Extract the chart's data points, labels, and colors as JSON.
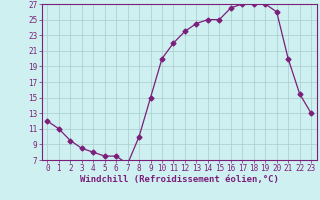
{
  "x": [
    0,
    1,
    2,
    3,
    4,
    5,
    6,
    7,
    8,
    9,
    10,
    11,
    12,
    13,
    14,
    15,
    16,
    17,
    18,
    19,
    20,
    21,
    22,
    23
  ],
  "y": [
    12,
    11,
    9.5,
    8.5,
    8,
    7.5,
    7.5,
    6.5,
    10,
    15,
    20,
    22,
    23.5,
    24.5,
    25,
    25,
    26.5,
    27,
    27,
    27,
    26,
    20,
    15.5,
    13
  ],
  "line_color": "#7B1F7B",
  "marker": "D",
  "marker_size": 2.5,
  "bg_color": "#cef0f0",
  "grid_color": "#aacccc",
  "xlabel": "Windchill (Refroidissement éolien,°C)",
  "xlabel_fontsize": 6.5,
  "tick_fontsize": 5.5,
  "ylim": [
    7,
    27
  ],
  "yticks": [
    7,
    9,
    11,
    13,
    15,
    17,
    19,
    21,
    23,
    25,
    27
  ],
  "xlim": [
    -0.5,
    23.5
  ],
  "xticks": [
    0,
    1,
    2,
    3,
    4,
    5,
    6,
    7,
    8,
    9,
    10,
    11,
    12,
    13,
    14,
    15,
    16,
    17,
    18,
    19,
    20,
    21,
    22,
    23
  ]
}
